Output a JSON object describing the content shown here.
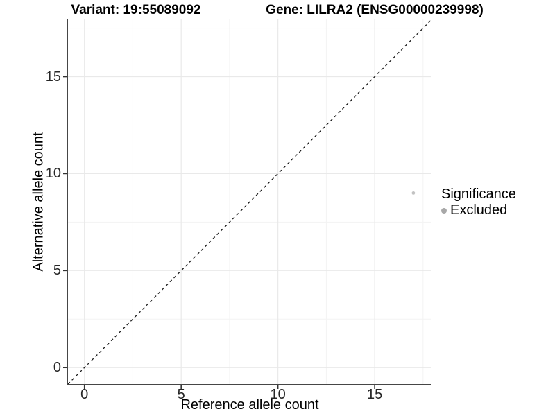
{
  "header": {
    "variant_title": "Variant: 19:55089092",
    "gene_title": "Gene: LILRA2 (ENSG00000239998)"
  },
  "chart_data": {
    "type": "scatter",
    "title": "Variant: 19:55089092 / Gene: LILRA2 (ENSG00000239998)",
    "xlabel": "Reference allele count",
    "ylabel": "Alternative allele count",
    "points": [
      {
        "x": 17,
        "y": 9,
        "significance": "Excluded"
      }
    ],
    "xlim": [
      -0.85,
      17.9
    ],
    "ylim": [
      -0.85,
      17.95
    ],
    "x_ticks": [
      0,
      5,
      10,
      15
    ],
    "y_ticks": [
      0,
      5,
      10,
      15
    ],
    "x_minor_ticks": [
      2.5,
      7.5,
      12.5,
      17.5
    ],
    "y_minor_ticks": [
      2.5,
      7.5,
      12.5,
      17.5
    ],
    "abline": {
      "slope": 1,
      "intercept": 0,
      "style": "dashed"
    },
    "grid": "major+minor",
    "legend_position": "right",
    "point_color": "#c2c2c2",
    "point_radius_px": 2.4
  },
  "legend": {
    "title": "Significance",
    "items": [
      {
        "label": "Excluded",
        "color": "#a8a8a8"
      }
    ]
  },
  "colors": {
    "background": "#ffffff",
    "axis_line": "#464646",
    "tick": "#333333",
    "tick_label": "#262626",
    "grid_major": "#e9e9e9",
    "grid_minor": "#f3f3f3",
    "abline": "#1a1a1a"
  }
}
